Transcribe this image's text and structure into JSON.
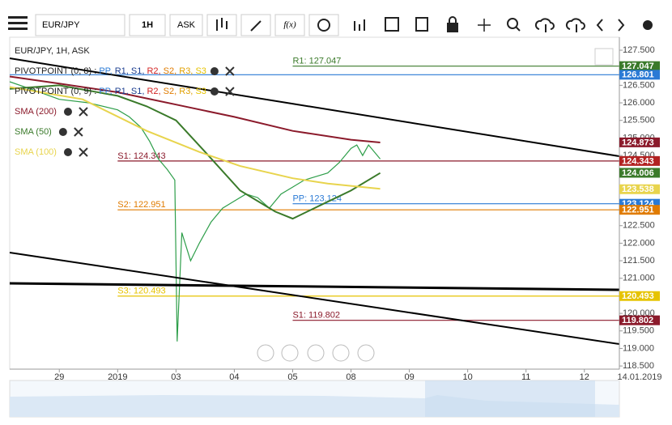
{
  "toolbar": {
    "symbol": "EUR/JPY",
    "interval": "1H",
    "side": "ASK",
    "fx": "f(x)"
  },
  "chart_data": {
    "type": "line",
    "title": "EUR/JPY, 1H, ASK",
    "indicators": [
      {
        "name": "PIVOTPOINT (0, 8)",
        "sep": ":",
        "items": [
          {
            "text": "PP,",
            "color": "#2a7ad5"
          },
          {
            "text": "R1,",
            "color": "#1a3c8f"
          },
          {
            "text": "S1,",
            "color": "#1a3c8f"
          },
          {
            "text": "R2,",
            "color": "#d22222"
          },
          {
            "text": "S2,",
            "color": "#e07b00"
          },
          {
            "text": "R3,",
            "color": "#e0a000"
          },
          {
            "text": "S3",
            "color": "#e6c300"
          }
        ]
      },
      {
        "name": "PIVOTPOINT (0, 9)",
        "sep": ":",
        "items": [
          {
            "text": "PP,",
            "color": "#2a7ad5"
          },
          {
            "text": "R1,",
            "color": "#1a3c8f"
          },
          {
            "text": "S1,",
            "color": "#1a3c8f"
          },
          {
            "text": "R2,",
            "color": "#d22222"
          },
          {
            "text": "S2,",
            "color": "#e07b00"
          },
          {
            "text": "R3,",
            "color": "#e0a000"
          },
          {
            "text": "S3",
            "color": "#e6c300"
          }
        ]
      }
    ],
    "series": [
      {
        "name": "SMA (200)",
        "color": "#8b1a2b",
        "x": [
          -0.85,
          0,
          1,
          2,
          3,
          4,
          5,
          5.5
        ],
        "values": [
          126.75,
          126.55,
          126.3,
          125.95,
          125.6,
          125.2,
          124.95,
          124.87
        ]
      },
      {
        "name": "SMA (50)",
        "color": "#3a7a2a",
        "x": [
          -0.85,
          0,
          1,
          1.5,
          2,
          2.5,
          3.1,
          3.7,
          4,
          4.5,
          5,
          5.5
        ],
        "values": [
          126.4,
          126.5,
          126.2,
          125.9,
          125.5,
          124.6,
          123.5,
          122.9,
          122.7,
          123.1,
          123.5,
          124.0
        ]
      },
      {
        "name": "SMA (100)",
        "color": "#e8d44d",
        "x": [
          -0.85,
          0.4,
          1.5,
          2.4,
          3.1,
          4,
          4.6,
          5.5
        ],
        "values": [
          126.45,
          126.1,
          125.2,
          124.6,
          124.2,
          123.85,
          123.7,
          123.55
        ]
      }
    ],
    "price": {
      "color": "#2e9e4a",
      "x": [
        -0.85,
        -0.5,
        0,
        0.5,
        1,
        1.2,
        1.4,
        1.55,
        1.7,
        1.85,
        1.98,
        2.02,
        2.1,
        2.25,
        2.4,
        2.6,
        2.8,
        3.0,
        3.2,
        3.4,
        3.6,
        3.8,
        4.0,
        4.2,
        4.4,
        4.6,
        4.8,
        5.0,
        5.1,
        5.2,
        5.3,
        5.4,
        5.5
      ],
      "values": [
        126.6,
        126.4,
        126.1,
        126.0,
        125.8,
        125.6,
        125.3,
        124.9,
        124.4,
        124.1,
        123.8,
        119.2,
        122.3,
        121.5,
        122.0,
        122.6,
        123.0,
        123.2,
        123.4,
        123.3,
        123.0,
        123.4,
        123.6,
        123.8,
        123.9,
        124.0,
        124.3,
        124.7,
        124.8,
        124.5,
        124.8,
        124.6,
        124.4
      ]
    },
    "levels": [
      {
        "value": 127.047,
        "label": "R1: 127.047",
        "color": "#3a7a2a",
        "x": 4.0
      },
      {
        "value": 126.801,
        "color": "#2a7ad5",
        "x": -0.85
      },
      {
        "value": 124.343,
        "label": "S1: 124.343",
        "color": "#8b1a2b",
        "x": 1.0
      },
      {
        "value": 123.124,
        "label": "PP: 123.124",
        "color": "#2a7ad5",
        "x": 4.0
      },
      {
        "value": 122.951,
        "label": "S2: 122.951",
        "color": "#e07b00",
        "x": 1.0
      },
      {
        "value": 120.493,
        "label": "S3: 120.493",
        "color": "#e6c300",
        "x": 1.0
      },
      {
        "value": 119.802,
        "label": "S1: 119.802",
        "color": "#8b1a2b",
        "x": 4.0
      }
    ],
    "price_tags": [
      {
        "value": 127.047,
        "label": "127.047",
        "color": "#3a7a2a"
      },
      {
        "value": 126.801,
        "label": "126.801",
        "color": "#2a7ad5"
      },
      {
        "value": 124.873,
        "label": "124.873",
        "color": "#8b1a2b"
      },
      {
        "value": 124.343,
        "label": "124.343",
        "color": "#b22222"
      },
      {
        "value": 124.006,
        "label": "124.006",
        "color": "#3a7a2a"
      },
      {
        "value": 123.538,
        "label": "123.538",
        "color": "#e8d44d"
      },
      {
        "value": 123.124,
        "label": "123.124",
        "color": "#2a7ad5"
      },
      {
        "value": 122.951,
        "label": "122.951",
        "color": "#e07b00"
      },
      {
        "value": 120.493,
        "label": "120.493",
        "color": "#e6c300"
      },
      {
        "value": 119.802,
        "label": "119.802",
        "color": "#8b1a2b"
      }
    ],
    "xlim": [
      -0.85,
      9.6
    ],
    "xticks": [
      {
        "value": 0,
        "label": "29"
      },
      {
        "value": 1,
        "label": "2019"
      },
      {
        "value": 2,
        "label": "03"
      },
      {
        "value": 3,
        "label": "04"
      },
      {
        "value": 4,
        "label": "05"
      },
      {
        "value": 5,
        "label": "08"
      },
      {
        "value": 6,
        "label": "09"
      },
      {
        "value": 7,
        "label": "10"
      },
      {
        "value": 8,
        "label": "11"
      },
      {
        "value": 9,
        "label": "12"
      }
    ],
    "x_end_label": "14.01.2019",
    "ylim": [
      118.41,
      127.87
    ],
    "yticks": [
      {
        "value": 127.5,
        "label": "127.500"
      },
      {
        "value": 127,
        "label": "127.000"
      },
      {
        "value": 126.5,
        "label": "126.500"
      },
      {
        "value": 126,
        "label": "126.000"
      },
      {
        "value": 125.5,
        "label": "125.500"
      },
      {
        "value": 125,
        "label": "125.000"
      },
      {
        "value": 124.5,
        "label": "124.500"
      },
      {
        "value": 124,
        "label": "124.000"
      },
      {
        "value": 123.5,
        "label": "123.500"
      },
      {
        "value": 123,
        "label": "123.000"
      },
      {
        "value": 122.5,
        "label": "122.500"
      },
      {
        "value": 122,
        "label": "122.000"
      },
      {
        "value": 121.5,
        "label": "121.500"
      },
      {
        "value": 121,
        "label": "121.000"
      },
      {
        "value": 120.5,
        "label": "120.500"
      },
      {
        "value": 120,
        "label": "120.000"
      },
      {
        "value": 119.5,
        "label": "119.500"
      },
      {
        "value": 119,
        "label": "119.000"
      },
      {
        "value": 118.5,
        "label": "118.500"
      }
    ]
  }
}
